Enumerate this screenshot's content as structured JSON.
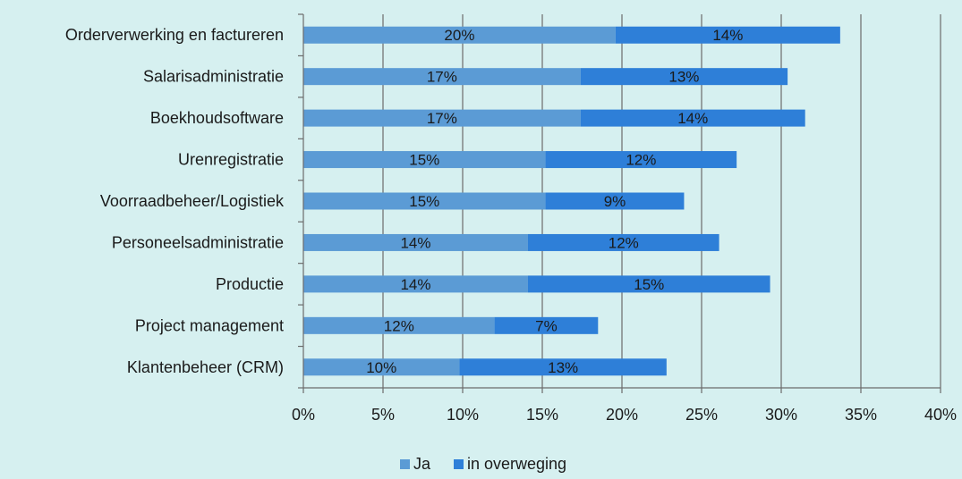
{
  "chart_data": {
    "type": "bar",
    "orientation": "horizontal",
    "stacked": true,
    "categories": [
      "Orderverwerking en factureren",
      "Salarisadministratie",
      "Boekhoudsoftware",
      "Urenregistratie",
      "Voorraadbeheer/Logistiek",
      "Personeelsadministratie",
      "Productie",
      "Project management",
      "Klantenbeheer (CRM)"
    ],
    "series": [
      {
        "name": "Ja",
        "color": "#5b9bd5",
        "values": [
          19.6,
          17.4,
          17.4,
          15.2,
          15.2,
          14.1,
          14.1,
          12.0,
          9.8
        ],
        "labels": [
          "20%",
          "17%",
          "17%",
          "15%",
          "15%",
          "14%",
          "14%",
          "12%",
          "10%"
        ]
      },
      {
        "name": "in overweging",
        "color": "#2e7fd8",
        "values": [
          14.1,
          13.0,
          14.1,
          12.0,
          8.7,
          12.0,
          15.2,
          6.5,
          13.0
        ],
        "labels": [
          "14%",
          "13%",
          "14%",
          "12%",
          "9%",
          "12%",
          "15%",
          "7%",
          "13%"
        ]
      }
    ],
    "xlim": [
      0,
      40
    ],
    "xticks": [
      "0%",
      "5%",
      "10%",
      "15%",
      "20%",
      "25%",
      "30%",
      "35%",
      "40%"
    ],
    "grid": true,
    "legend": "bottom-center",
    "title": "",
    "xlabel": "",
    "ylabel": ""
  }
}
